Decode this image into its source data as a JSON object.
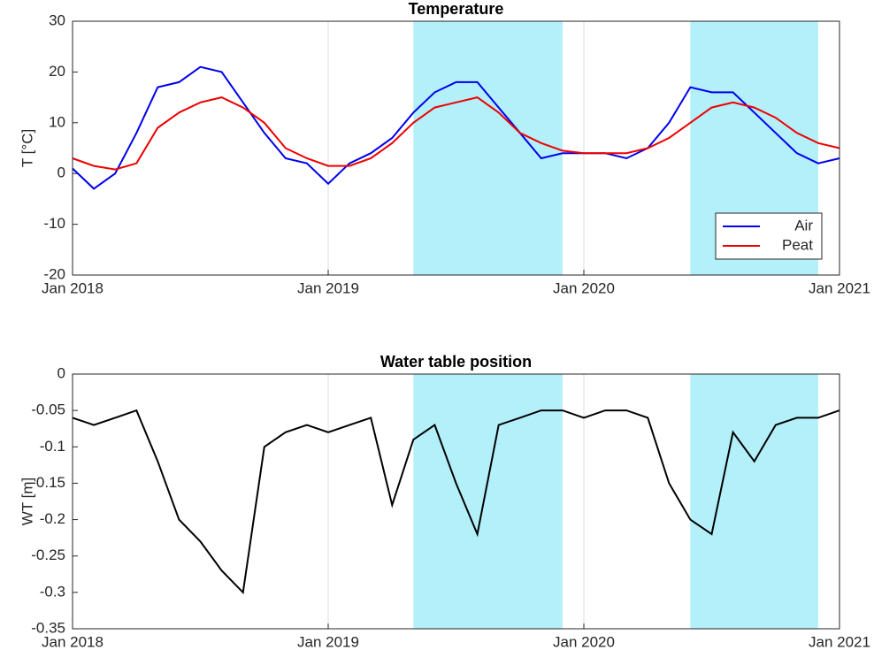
{
  "chart_data": [
    {
      "type": "line",
      "title": "Temperature",
      "y_label": "T [°C]",
      "x": [
        "2018-01",
        "2018-02",
        "2018-03",
        "2018-04",
        "2018-05",
        "2018-06",
        "2018-07",
        "2018-08",
        "2018-09",
        "2018-10",
        "2018-11",
        "2018-12",
        "2019-01",
        "2019-02",
        "2019-03",
        "2019-04",
        "2019-05",
        "2019-06",
        "2019-07",
        "2019-08",
        "2019-09",
        "2019-10",
        "2019-11",
        "2019-12",
        "2020-01",
        "2020-02",
        "2020-03",
        "2020-04",
        "2020-05",
        "2020-06",
        "2020-07",
        "2020-08",
        "2020-09",
        "2020-10",
        "2020-11",
        "2020-12",
        "2021-01"
      ],
      "series": [
        {
          "name": "Air",
          "color": "#0000ee",
          "values": [
            1,
            -3,
            0,
            8,
            17,
            18,
            21,
            20,
            14,
            8,
            3,
            2,
            -2,
            2,
            4,
            7,
            12,
            16,
            18,
            18,
            13,
            8,
            3,
            4,
            4,
            4,
            3,
            5,
            10,
            17,
            16,
            16,
            12,
            8,
            4,
            2,
            3
          ]
        },
        {
          "name": "Peat",
          "color": "#ee0000",
          "values": [
            3,
            1.5,
            0.8,
            2,
            9,
            12,
            14,
            15,
            13,
            10,
            5,
            3,
            1.5,
            1.5,
            3,
            6,
            10,
            13,
            14,
            15,
            12,
            8,
            6,
            4.5,
            4,
            4,
            4,
            5,
            7,
            10,
            13,
            14,
            13,
            11,
            8,
            6,
            5
          ]
        }
      ],
      "xlim": [
        "2018-01",
        "2021-01"
      ],
      "xticks": [
        {
          "value": "2018-01",
          "label": "Jan 2018"
        },
        {
          "value": "2019-01",
          "label": "Jan 2019"
        },
        {
          "value": "2020-01",
          "label": "Jan 2020"
        },
        {
          "value": "2021-01",
          "label": "Jan 2021"
        }
      ],
      "ylim": [
        -20,
        30
      ],
      "yticks": [
        -20,
        -10,
        0,
        10,
        20,
        30
      ],
      "shaded_periods": [
        [
          "2019-05",
          "2019-12"
        ],
        [
          "2020-06",
          "2020-12"
        ]
      ],
      "shade_color": "#b3f0fa",
      "grid": true,
      "legend": "lower-right"
    },
    {
      "type": "line",
      "title": "Water table position",
      "y_label": "WT [m]",
      "x": [
        "2018-01",
        "2018-02",
        "2018-03",
        "2018-04",
        "2018-05",
        "2018-06",
        "2018-07",
        "2018-08",
        "2018-09",
        "2018-10",
        "2018-11",
        "2018-12",
        "2019-01",
        "2019-02",
        "2019-03",
        "2019-04",
        "2019-05",
        "2019-06",
        "2019-07",
        "2019-08",
        "2019-09",
        "2019-10",
        "2019-11",
        "2019-12",
        "2020-01",
        "2020-02",
        "2020-03",
        "2020-04",
        "2020-05",
        "2020-06",
        "2020-07",
        "2020-08",
        "2020-09",
        "2020-10",
        "2020-11",
        "2020-12",
        "2021-01"
      ],
      "series": [
        {
          "color": "#000000",
          "values": [
            -0.06,
            -0.07,
            -0.06,
            -0.05,
            -0.12,
            -0.2,
            -0.23,
            -0.27,
            -0.3,
            -0.1,
            -0.08,
            -0.07,
            -0.08,
            -0.07,
            -0.06,
            -0.18,
            -0.09,
            -0.07,
            -0.15,
            -0.22,
            -0.07,
            -0.06,
            -0.05,
            -0.05,
            -0.06,
            -0.05,
            -0.05,
            -0.06,
            -0.15,
            -0.2,
            -0.22,
            -0.08,
            -0.12,
            -0.07,
            -0.06,
            -0.06,
            -0.05
          ]
        }
      ],
      "xlim": [
        "2018-01",
        "2021-01"
      ],
      "xticks": [
        {
          "value": "2018-01",
          "label": "Jan 2018"
        },
        {
          "value": "2019-01",
          "label": "Jan 2019"
        },
        {
          "value": "2020-01",
          "label": "Jan 2020"
        },
        {
          "value": "2021-01",
          "label": "Jan 2021"
        }
      ],
      "ylim": [
        -0.35,
        0
      ],
      "yticks": [
        -0.35,
        -0.3,
        -0.25,
        -0.2,
        -0.15,
        -0.1,
        -0.05,
        0
      ],
      "shaded_periods": [
        [
          "2019-05",
          "2019-12"
        ],
        [
          "2020-06",
          "2020-12"
        ]
      ],
      "shade_color": "#b3f0fa",
      "grid": true
    }
  ]
}
